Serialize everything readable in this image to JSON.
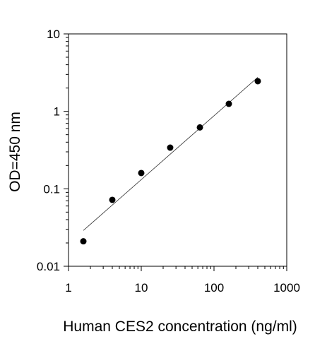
{
  "chart_data": {
    "type": "scatter",
    "title": "",
    "xlabel": "Human CES2 concentration (ng/ml)",
    "ylabel": "OD=450 nm",
    "x_scale": "log",
    "y_scale": "log",
    "xlim": [
      1,
      1000
    ],
    "ylim": [
      0.01,
      10
    ],
    "x_ticks": [
      "1",
      "10",
      "100",
      "1000"
    ],
    "y_ticks": [
      "0.01",
      "0.1",
      "1",
      "10"
    ],
    "grid": false,
    "legend": "none",
    "series": [
      {
        "points": [
          {
            "x": 1.6,
            "y": 0.021
          },
          {
            "x": 4,
            "y": 0.072
          },
          {
            "x": 10,
            "y": 0.16
          },
          {
            "x": 25,
            "y": 0.34
          },
          {
            "x": 64,
            "y": 0.62
          },
          {
            "x": 160,
            "y": 1.25
          },
          {
            "x": 400,
            "y": 2.45
          }
        ]
      }
    ],
    "fit_line": {
      "type": "linear-log-log",
      "x": [
        1.6,
        400
      ],
      "y": [
        0.029,
        2.75
      ]
    },
    "colors": {
      "marker": "#000000",
      "fit_line": "#333333",
      "axis": "#000000"
    }
  }
}
